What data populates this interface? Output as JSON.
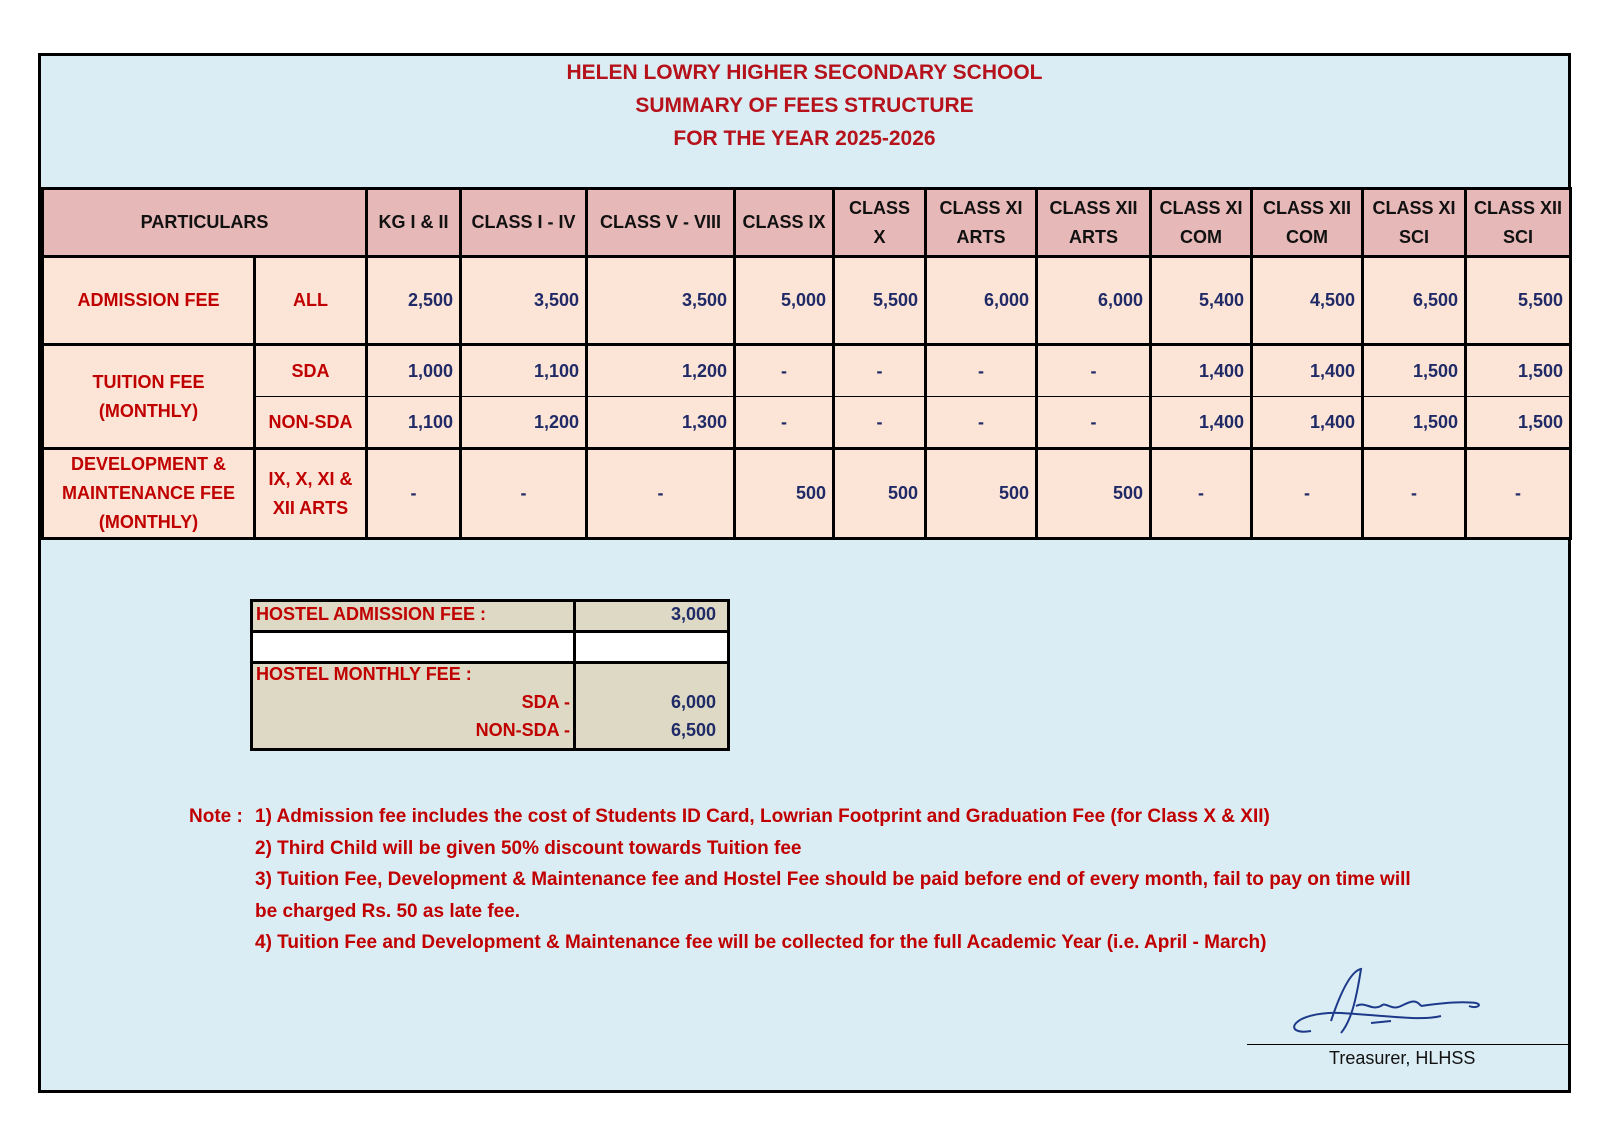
{
  "header": {
    "title": [
      "HELEN LOWRY HIGHER SECONDARY SCHOOL",
      "SUMMARY OF FEES STRUCTURE",
      "FOR THE YEAR 2025-2026"
    ]
  },
  "table": {
    "columns": [
      "PARTICULARS",
      "KG I & II",
      "CLASS I - IV",
      "CLASS V - VIII",
      "CLASS IX",
      "CLASS X",
      "CLASS XI ARTS",
      "CLASS XII ARTS",
      "CLASS XI COM",
      "CLASS XII COM",
      "CLASS XI SCI",
      "CLASS XII SCI"
    ],
    "rows": [
      {
        "label": "ADMISSION FEE",
        "sub": "ALL",
        "values": [
          "2,500",
          "3,500",
          "3,500",
          "5,000",
          "5,500",
          "6,000",
          "6,000",
          "5,400",
          "4,500",
          "6,500",
          "5,500"
        ]
      },
      {
        "label": "TUITION FEE (MONTHLY)",
        "sub": "SDA",
        "values": [
          "1,000",
          "1,100",
          "1,200",
          "-",
          "-",
          "-",
          "-",
          "1,400",
          "1,400",
          "1,500",
          "1,500"
        ]
      },
      {
        "label": null,
        "sub": "NON-SDA",
        "values": [
          "1,100",
          "1,200",
          "1,300",
          "-",
          "-",
          "-",
          "-",
          "1,400",
          "1,400",
          "1,500",
          "1,500"
        ]
      },
      {
        "label": "DEVELOPMENT & MAINTENANCE FEE (MONTHLY)",
        "sub": "IX, X, XI & XII ARTS",
        "values": [
          "-",
          "-",
          "-",
          "500",
          "500",
          "500",
          "500",
          "-",
          "-",
          "-",
          "-"
        ]
      }
    ]
  },
  "hostel": {
    "admission_label": "HOSTEL ADMISSION FEE :",
    "admission_value": "3,000",
    "monthly_label": "HOSTEL MONTHLY FEE :",
    "sda_label": "SDA -",
    "sda_value": "6,000",
    "nonsda_label": "NON-SDA -",
    "nonsda_value": "6,500"
  },
  "notes": {
    "label": "Note :",
    "items": [
      "1) Admission fee includes the cost of Students ID Card, Lowrian Footprint and Graduation Fee (for Class X & XII)",
      "2) Third Child will be given 50% discount towards Tuition fee",
      "3) Tuition Fee, Development & Maintenance fee and Hostel Fee should be paid before end of every month, fail to pay on time will be charged Rs. 50 as late fee.",
      "4) Tuition Fee and Development & Maintenance fee will be collected for the full Academic Year (i.e. April - March)"
    ]
  },
  "signature": {
    "caption": "Treasurer, HLHSS"
  }
}
